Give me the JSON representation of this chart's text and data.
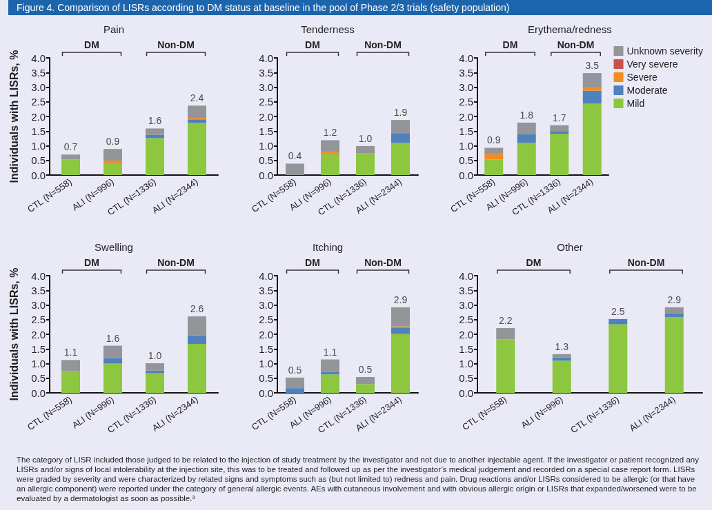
{
  "chart_data": [
    {
      "type": "other",
      "title": "Figure 4. Comparison of LISRs according to DM status at baseline in the pool of Phase 2/3 trials (safety population)",
      "annotations": [
        "The category of LISR included those judged to be related to the injection of study treatment by the investigator and not due to another injectable agent. If the investigator or patient recognized any LISRs and/or signs of local intolerability at the injection site, this was to be treated and followed up as per the investigator’s medical judgement and recorded on a special case report form. LISRs were graded by severity and were characterized by related signs and symptoms such as (but not limited to) redness and pain. Drug reactions and/or LISRs considered to be allergic (or that have an allergic component) were reported under the category of general allergic events. AEs with cutaneous involvement and with obvious allergic origin or LISRs that expanded/worsened were to be evaluated by a dermatologist as soon as possible.³"
      ]
    },
    {
      "type": "bar",
      "title": "Pain",
      "ylabel": "Individuals with LISRs, %",
      "stacked": true,
      "grid": false,
      "legend": false,
      "categories": [
        "CTL (N=558)",
        "ALI (N=996)",
        "CTL (N=1336)",
        "ALI (N=2344)"
      ],
      "ylim": [
        0,
        4
      ],
      "yticks": [
        {
          "value": 0,
          "label": "0.0"
        },
        {
          "value": 0.5,
          "label": "0.5"
        },
        {
          "value": 1,
          "label": "1.0"
        },
        {
          "value": 1.5,
          "label": "1.5"
        },
        {
          "value": 2,
          "label": "2.0"
        },
        {
          "value": 2.5,
          "label": "2.5"
        },
        {
          "value": 3,
          "label": "3.0"
        },
        {
          "value": 3.5,
          "label": "3.5"
        },
        {
          "value": 4,
          "label": "4.0"
        }
      ],
      "annotations": [
        "DM",
        "Non-DM"
      ],
      "totals": [
        "0.7",
        "0.9",
        "1.6",
        "2.4"
      ],
      "series": [
        {
          "color": "#8dc63f",
          "values": [
            0.53,
            0.4,
            1.26,
            1.78
          ]
        },
        {
          "color": "#4f81bd",
          "values": [
            0,
            0,
            0.11,
            0.12
          ]
        },
        {
          "color": "#f58a1f",
          "values": [
            0,
            0.09,
            0,
            0.05
          ]
        },
        {
          "color": "#c9504d",
          "values": [
            0,
            0,
            0,
            0
          ]
        },
        {
          "color": "#939598",
          "values": [
            0.17,
            0.4,
            0.22,
            0.42
          ]
        }
      ]
    },
    {
      "type": "bar",
      "title": "Tenderness",
      "stacked": true,
      "grid": false,
      "legend": false,
      "categories": [
        "CTL (N=558)",
        "ALI (N=996)",
        "CTL (N=1336)",
        "ALI (N=2344)"
      ],
      "ylim": [
        0,
        4
      ],
      "yticks": [
        {
          "value": 0,
          "label": "0.0"
        },
        {
          "value": 0.5,
          "label": "0.5"
        },
        {
          "value": 1,
          "label": "1.0"
        },
        {
          "value": 1.5,
          "label": "1.5"
        },
        {
          "value": 2,
          "label": "2.0"
        },
        {
          "value": 2.5,
          "label": "2.5"
        },
        {
          "value": 3,
          "label": "3.0"
        },
        {
          "value": 3.5,
          "label": "3.5"
        },
        {
          "value": 4,
          "label": "4.0"
        }
      ],
      "annotations": [
        "DM",
        "Non-DM"
      ],
      "totals": [
        "0.4",
        "1.2",
        "1.0",
        "1.9"
      ],
      "series": [
        {
          "color": "#8dc63f",
          "values": [
            0,
            0.71,
            0.75,
            1.1
          ]
        },
        {
          "color": "#4f81bd",
          "values": [
            0,
            0,
            0,
            0.31
          ]
        },
        {
          "color": "#f58a1f",
          "values": [
            0,
            0.08,
            0,
            0
          ]
        },
        {
          "color": "#c9504d",
          "values": [
            0,
            0,
            0,
            0.02
          ]
        },
        {
          "color": "#939598",
          "values": [
            0.39,
            0.4,
            0.24,
            0.45
          ]
        }
      ]
    },
    {
      "type": "bar",
      "title": "Erythema/redness",
      "stacked": true,
      "grid": false,
      "legend": "right",
      "categories": [
        "CTL (N=558)",
        "ALI (N=996)",
        "CTL (N=1336)",
        "ALI (N=2344)"
      ],
      "ylim": [
        0,
        4
      ],
      "yticks": [
        {
          "value": 0,
          "label": "0.0"
        },
        {
          "value": 0.5,
          "label": "0.5"
        },
        {
          "value": 1,
          "label": "1.0"
        },
        {
          "value": 1.5,
          "label": "1.5"
        },
        {
          "value": 2,
          "label": "2.0"
        },
        {
          "value": 2.5,
          "label": "2.5"
        },
        {
          "value": 3,
          "label": "3.0"
        },
        {
          "value": 3.5,
          "label": "3.5"
        },
        {
          "value": 4,
          "label": "4.0"
        }
      ],
      "annotations": [
        "DM",
        "Non-DM"
      ],
      "totals": [
        "0.9",
        "1.8",
        "1.7",
        "3.5"
      ],
      "series": [
        {
          "name": "Mild",
          "color": "#8dc63f",
          "values": [
            0.53,
            1.1,
            1.41,
            2.44
          ]
        },
        {
          "name": "Moderate",
          "color": "#4f81bd",
          "values": [
            0,
            0.29,
            0.09,
            0.44
          ]
        },
        {
          "name": "Severe",
          "color": "#f58a1f",
          "values": [
            0.19,
            0,
            0,
            0.1
          ]
        },
        {
          "name": "Very severe",
          "color": "#c9504d",
          "values": [
            0,
            0,
            0,
            0
          ]
        },
        {
          "name": "Unknown severity",
          "color": "#939598",
          "values": [
            0.21,
            0.4,
            0.2,
            0.5
          ]
        }
      ]
    },
    {
      "type": "bar",
      "title": "Swelling",
      "ylabel": "Individuals with LISRs, %",
      "stacked": true,
      "grid": false,
      "legend": false,
      "categories": [
        "CTL (N=558)",
        "ALI (N=996)",
        "CTL (N=1336)",
        "ALI (N=2344)"
      ],
      "ylim": [
        0,
        4
      ],
      "yticks": [
        {
          "value": 0,
          "label": "0.0"
        },
        {
          "value": 0.5,
          "label": "0.5"
        },
        {
          "value": 1,
          "label": "1.0"
        },
        {
          "value": 1.5,
          "label": "1.5"
        },
        {
          "value": 2,
          "label": "2.0"
        },
        {
          "value": 2.5,
          "label": "2.5"
        },
        {
          "value": 3,
          "label": "3.0"
        },
        {
          "value": 3.5,
          "label": "3.5"
        },
        {
          "value": 4,
          "label": "4.0"
        }
      ],
      "annotations": [
        "DM",
        "Non-DM"
      ],
      "totals": [
        "1.1",
        "1.6",
        "1.0",
        "2.6"
      ],
      "series": [
        {
          "color": "#8dc63f",
          "values": [
            0.74,
            1.01,
            0.67,
            1.67
          ]
        },
        {
          "color": "#4f81bd",
          "values": [
            0,
            0.18,
            0.09,
            0.29
          ]
        },
        {
          "color": "#f58a1f",
          "values": [
            0,
            0,
            0,
            0
          ]
        },
        {
          "color": "#c9504d",
          "values": [
            0,
            0,
            0,
            0
          ]
        },
        {
          "color": "#939598",
          "values": [
            0.38,
            0.42,
            0.25,
            0.65
          ]
        }
      ]
    },
    {
      "type": "bar",
      "title": "Itching",
      "stacked": true,
      "grid": false,
      "legend": false,
      "categories": [
        "CTL (N=558)",
        "ALI (N=996)",
        "CTL (N=1336)",
        "ALI (N=2344)"
      ],
      "ylim": [
        0,
        4
      ],
      "yticks": [
        {
          "value": 0,
          "label": "0.0"
        },
        {
          "value": 0.5,
          "label": "0.5"
        },
        {
          "value": 1,
          "label": "1.0"
        },
        {
          "value": 1.5,
          "label": "1.5"
        },
        {
          "value": 2,
          "label": "2.0"
        },
        {
          "value": 2.5,
          "label": "2.5"
        },
        {
          "value": 3,
          "label": "3.0"
        },
        {
          "value": 3.5,
          "label": "3.5"
        },
        {
          "value": 4,
          "label": "4.0"
        }
      ],
      "annotations": [
        "DM",
        "Non-DM"
      ],
      "totals": [
        "0.5",
        "1.1",
        "0.5",
        "2.9"
      ],
      "series": [
        {
          "color": "#8dc63f",
          "values": [
            0,
            0.63,
            0.3,
            2.01
          ]
        },
        {
          "color": "#4f81bd",
          "values": [
            0.16,
            0.09,
            0,
            0.22
          ]
        },
        {
          "color": "#f58a1f",
          "values": [
            0,
            0,
            0,
            0.04
          ]
        },
        {
          "color": "#c9504d",
          "values": [
            0,
            0,
            0,
            0
          ]
        },
        {
          "color": "#939598",
          "values": [
            0.36,
            0.42,
            0.24,
            0.65
          ]
        }
      ]
    },
    {
      "type": "bar",
      "title": "Other",
      "stacked": true,
      "grid": false,
      "legend": false,
      "categories": [
        "CTL (N=558)",
        "ALI (N=996)",
        "CTL (N=1336)",
        "ALI (N=2344)"
      ],
      "ylim": [
        0,
        4
      ],
      "yticks": [
        {
          "value": 0,
          "label": "0.0"
        },
        {
          "value": 0.5,
          "label": "0.5"
        },
        {
          "value": 1,
          "label": "1.0"
        },
        {
          "value": 1.5,
          "label": "1.5"
        },
        {
          "value": 2,
          "label": "2.0"
        },
        {
          "value": 2.5,
          "label": "2.5"
        },
        {
          "value": 3,
          "label": "3.0"
        },
        {
          "value": 3.5,
          "label": "3.5"
        },
        {
          "value": 4,
          "label": "4.0"
        }
      ],
      "annotations": [
        "DM",
        "Non-DM"
      ],
      "totals": [
        "2.2",
        "1.3",
        "2.5",
        "2.9"
      ],
      "series": [
        {
          "color": "#8dc63f",
          "values": [
            1.83,
            1.1,
            2.34,
            2.59
          ]
        },
        {
          "color": "#4f81bd",
          "values": [
            0,
            0.11,
            0.18,
            0.13
          ]
        },
        {
          "color": "#f58a1f",
          "values": [
            0,
            0,
            0,
            0
          ]
        },
        {
          "color": "#c9504d",
          "values": [
            0,
            0,
            0,
            0
          ]
        },
        {
          "color": "#939598",
          "values": [
            0.38,
            0.11,
            0,
            0.2
          ]
        }
      ]
    }
  ]
}
